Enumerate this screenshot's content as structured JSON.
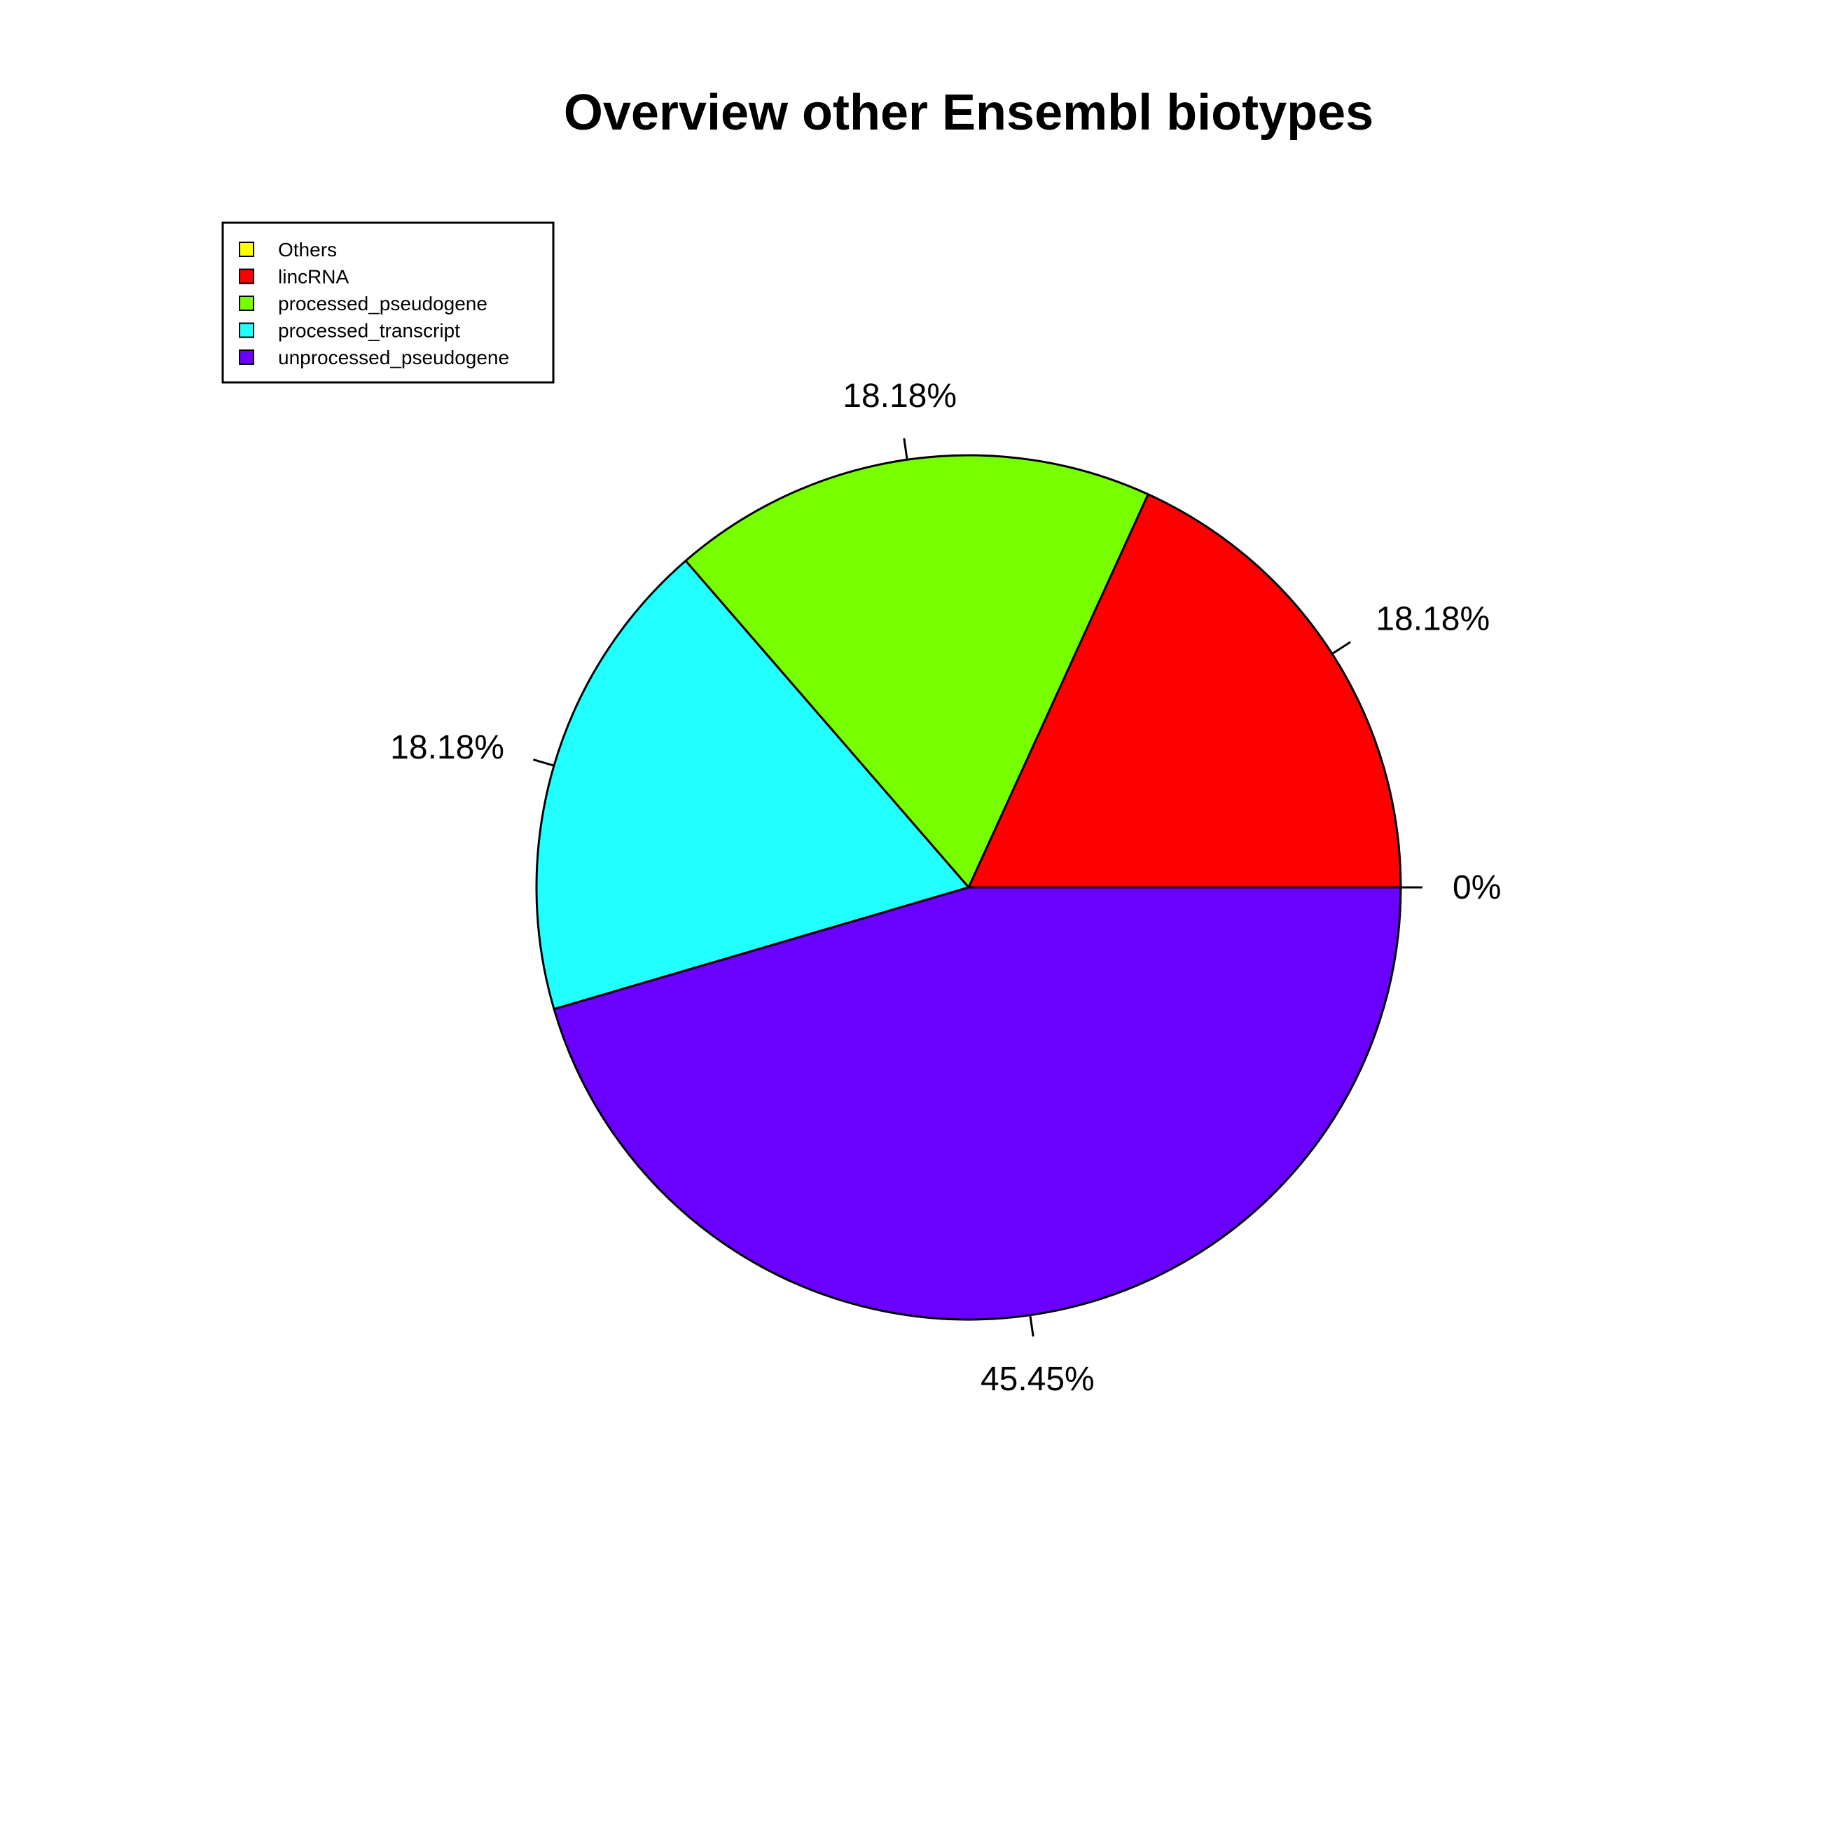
{
  "chart_data": {
    "type": "pie",
    "title": "Overview other Ensembl biotypes",
    "slices": [
      {
        "name": "Others",
        "value": 0,
        "label": "0%",
        "color": "#ffff00"
      },
      {
        "name": "lincRNA",
        "value": 18.18,
        "label": "18.18%",
        "color": "#ff0000"
      },
      {
        "name": "processed_pseudogene",
        "value": 18.18,
        "label": "18.18%",
        "color": "#77ff00"
      },
      {
        "name": "processed_transcript",
        "value": 18.18,
        "label": "18.18%",
        "color": "#22ffff"
      },
      {
        "name": "unprocessed_pseudogene",
        "value": 45.45,
        "label": "45.45%",
        "color": "#6a00ff"
      }
    ],
    "legend": {
      "placement": "top-left",
      "entries": [
        "Others",
        "lincRNA",
        "processed_pseudogene",
        "processed_transcript",
        "unprocessed_pseudogene"
      ]
    },
    "start_angle_deg": 0,
    "direction": "counterclockwise"
  }
}
